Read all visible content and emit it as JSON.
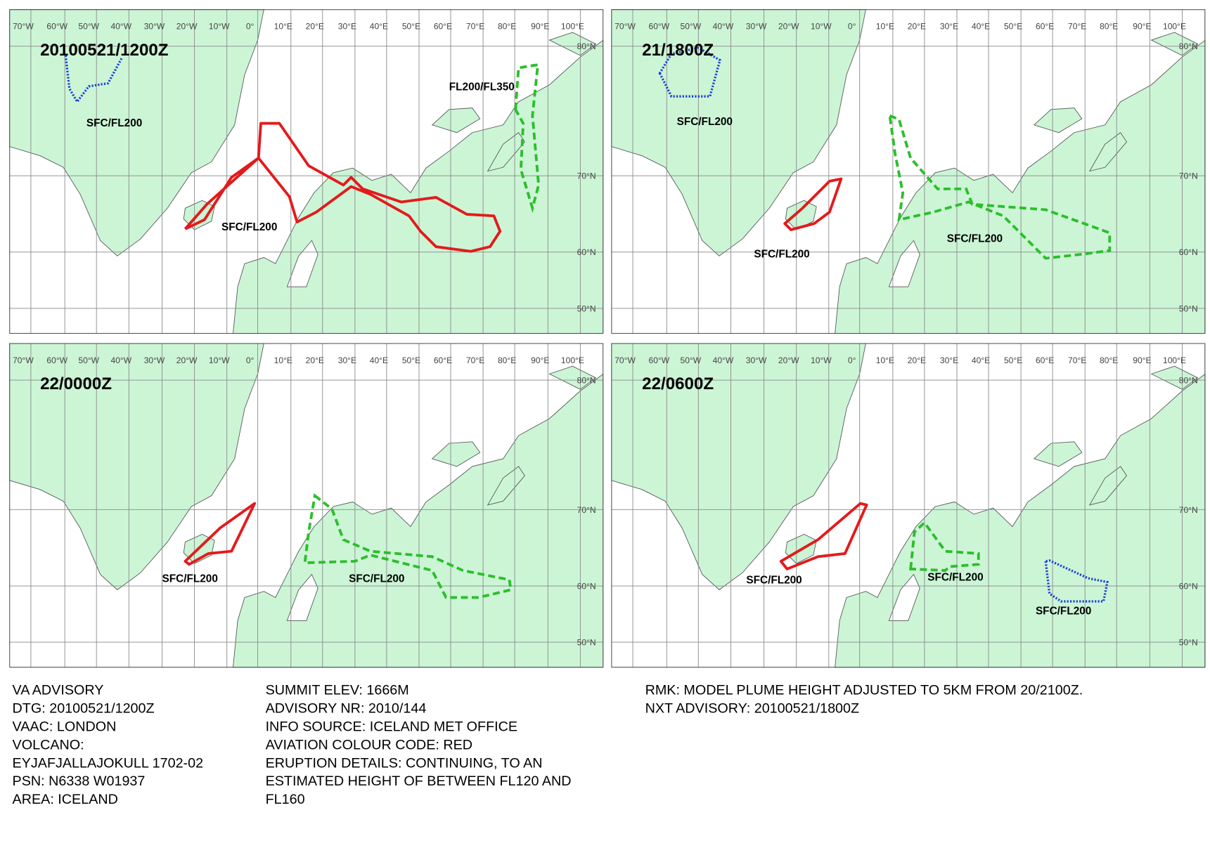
{
  "grid": {
    "lon_labels": [
      "70°W",
      "60°W",
      "50°W",
      "40°W",
      "30°W",
      "20°W",
      "10°W",
      "0°",
      "10°E",
      "20°E",
      "30°E",
      "40°E",
      "50°E",
      "60°E",
      "70°E",
      "80°E",
      "90°E",
      "100°E"
    ],
    "lat_labels": [
      "80°N",
      "70°N",
      "60°N",
      "50°N"
    ]
  },
  "panels": [
    {
      "time": "20100521/1200Z",
      "labels": [
        "SFC/FL200",
        "SFC/FL200",
        "FL200/FL350"
      ]
    },
    {
      "time": "21/1800Z",
      "labels": [
        "SFC/FL200",
        "SFC/FL200",
        "SFC/FL200"
      ]
    },
    {
      "time": "22/0000Z",
      "labels": [
        "SFC/FL200",
        "SFC/FL200"
      ]
    },
    {
      "time": "22/0600Z",
      "labels": [
        "SFC/FL200",
        "SFC/FL200",
        "SFC/FL200"
      ]
    }
  ],
  "info": {
    "left": [
      "VA ADVISORY",
      "DTG:  20100521/1200Z",
      "VAAC:  LONDON",
      "VOLCANO:",
      "EYJAFJALLAJOKULL 1702-02",
      "PSN:  N6338 W01937",
      "AREA:  ICELAND"
    ],
    "middle": [
      "SUMMIT ELEV:  1666M",
      "ADVISORY NR:  2010/144",
      "INFO SOURCE:  ICELAND MET OFFICE",
      "AVIATION COLOUR CODE:  RED",
      "ERUPTION DETAILS:  CONTINUING, TO AN",
      "ESTIMATED HEIGHT OF BETWEEN FL120 AND",
      "FL160"
    ],
    "right": [
      "RMK:  MODEL PLUME HEIGHT ADJUSTED TO 5KM FROM 20/2100Z.",
      "NXT ADVISORY:  20100521/1800Z"
    ]
  }
}
